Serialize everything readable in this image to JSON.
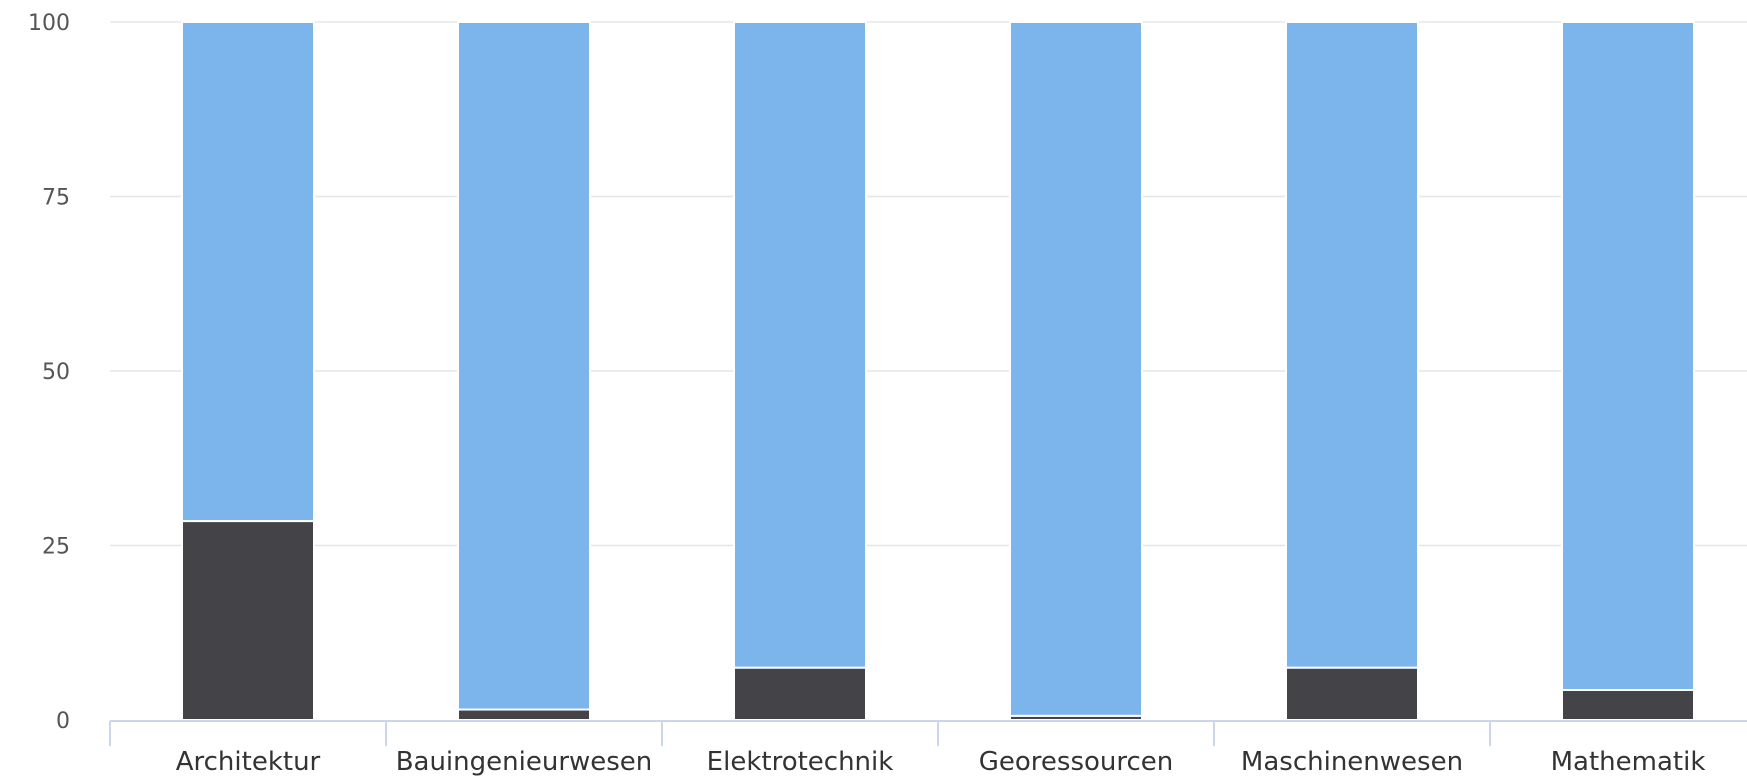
{
  "chart_data": {
    "type": "bar",
    "stacked": true,
    "categories": [
      "Architektur",
      "Bauingenieurwesen",
      "Elektrotechnik",
      "Georessourcen",
      "Maschinenwesen",
      "Mathematik"
    ],
    "series": [
      {
        "values": [
          28.5,
          1.5,
          7.5,
          0.6,
          7.5,
          4.3
        ],
        "color": "#434348"
      },
      {
        "values": [
          71.5,
          98.5,
          92.5,
          99.4,
          92.5,
          95.7
        ],
        "color": "#7cb5ec"
      }
    ],
    "yticks": [
      0,
      25,
      50,
      75,
      100
    ],
    "ylim": [
      0,
      100
    ],
    "grid": true,
    "legend": "none"
  }
}
